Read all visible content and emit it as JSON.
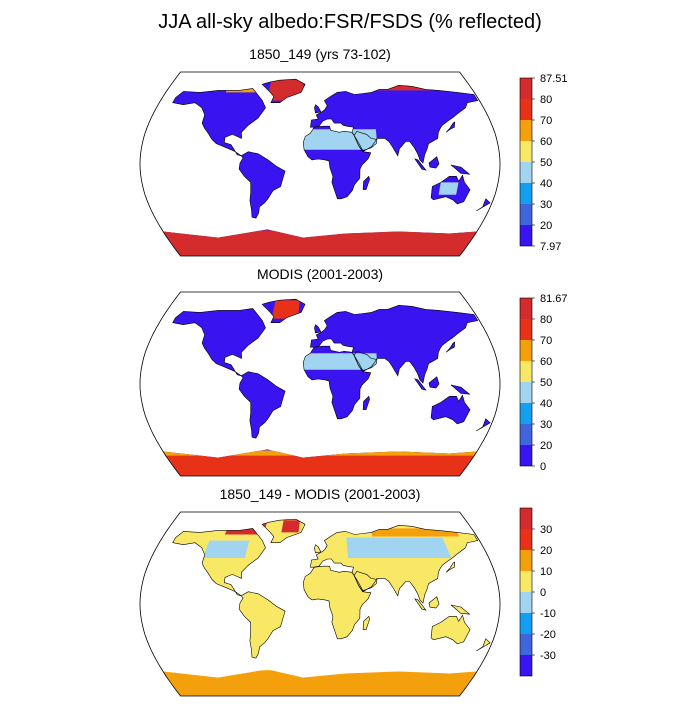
{
  "title": "JJA all-sky albedo:FSR/FSDS (% reflected)",
  "colors": {
    "deep_blue": "#3a14f0",
    "blue": "#3f66dc",
    "sky": "#14a0f0",
    "light_blue": "#a0d4f0",
    "yellow": "#f8e866",
    "orange": "#f4a00c",
    "red": "#e83218",
    "dark_red": "#d42c2c"
  },
  "chart_data": [
    {
      "type": "heatmap",
      "title": "1850_149 (yrs 73-102)",
      "colorbar": {
        "colors": [
          "#3a14f0",
          "#3f66dc",
          "#14a0f0",
          "#a0d4f0",
          "#f8e866",
          "#f4a00c",
          "#e83218",
          "#d42c2c"
        ],
        "labels": [
          "87.51",
          "80",
          "70",
          "60",
          "50",
          "40",
          "30",
          "20",
          "7.97"
        ],
        "min": 7.97,
        "max": 87.51
      },
      "land_color": "#3a14f0",
      "regions": [
        {
          "name": "sahara-arabia",
          "color": "#a0d4f0",
          "lon": [
            -17,
            58
          ],
          "lat": [
            14,
            34
          ]
        },
        {
          "name": "australia-interior",
          "color": "#a0d4f0",
          "lon": [
            122,
            140
          ],
          "lat": [
            -30,
            -18
          ]
        },
        {
          "name": "greenland",
          "color": "#d42c2c",
          "lon": [
            -60,
            -20
          ],
          "lat": [
            62,
            83
          ]
        },
        {
          "name": "arctic-siberia-coast",
          "color": "#d42c2c",
          "lon": [
            60,
            150
          ],
          "lat": [
            72,
            78
          ]
        },
        {
          "name": "arctic-canada",
          "color": "#f4a00c",
          "lon": [
            -110,
            -70
          ],
          "lat": [
            70,
            80
          ]
        },
        {
          "name": "antarctica",
          "color": "#d42c2c",
          "lon": [
            -180,
            180
          ],
          "lat": [
            -90,
            -65
          ]
        }
      ]
    },
    {
      "type": "heatmap",
      "title": "MODIS (2001-2003)",
      "colorbar": {
        "colors": [
          "#3a14f0",
          "#3f66dc",
          "#14a0f0",
          "#a0d4f0",
          "#f8e866",
          "#f4a00c",
          "#e83218",
          "#d42c2c"
        ],
        "labels": [
          "81.67",
          "80",
          "70",
          "60",
          "50",
          "40",
          "30",
          "20",
          "0"
        ],
        "min": 0,
        "max": 81.67
      },
      "land_color": "#3a14f0",
      "regions": [
        {
          "name": "sahara-arabia",
          "color": "#a0d4f0",
          "lon": [
            -17,
            58
          ],
          "lat": [
            14,
            30
          ]
        },
        {
          "name": "greenland",
          "color": "#e83218",
          "lon": [
            -55,
            -25
          ],
          "lat": [
            64,
            82
          ]
        },
        {
          "name": "antarctica",
          "color": "#e83218",
          "lon": [
            -180,
            180
          ],
          "lat": [
            -90,
            -66
          ]
        },
        {
          "name": "antarctica-edge",
          "color": "#f4a00c",
          "lon": [
            -180,
            180
          ],
          "lat": [
            -70,
            -65
          ]
        }
      ]
    },
    {
      "type": "heatmap",
      "title": "1850_149 - MODIS (2001-2003)",
      "colorbar": {
        "colors": [
          "#3a14f0",
          "#3f66dc",
          "#14a0f0",
          "#a0d4f0",
          "#f8e866",
          "#f4a00c",
          "#e83218",
          "#d42c2c"
        ],
        "labels": [
          "",
          "30",
          "20",
          "10",
          "0",
          "-10",
          "-20",
          "-30",
          ""
        ],
        "min": -40,
        "max": 40
      },
      "land_color": "#f8e866",
      "regions": [
        {
          "name": "eurasia-north",
          "color": "#a0d4f0",
          "lon": [
            30,
            140
          ],
          "lat": [
            45,
            65
          ]
        },
        {
          "name": "canada",
          "color": "#a0d4f0",
          "lon": [
            -125,
            -80
          ],
          "lat": [
            45,
            62
          ]
        },
        {
          "name": "siberia-coast",
          "color": "#f4a00c",
          "lon": [
            60,
            160
          ],
          "lat": [
            66,
            74
          ]
        },
        {
          "name": "arctic-canada",
          "color": "#d42c2c",
          "lon": [
            -110,
            -65
          ],
          "lat": [
            68,
            80
          ]
        },
        {
          "name": "greenland",
          "color": "#d42c2c",
          "lon": [
            -45,
            -25
          ],
          "lat": [
            70,
            82
          ]
        },
        {
          "name": "antarctica",
          "color": "#f4a00c",
          "lon": [
            -180,
            180
          ],
          "lat": [
            -90,
            -65
          ]
        },
        {
          "name": "australia-east",
          "color": "#f8e866",
          "lon": [
            140,
            154
          ],
          "lat": [
            -38,
            -15
          ]
        }
      ]
    }
  ]
}
